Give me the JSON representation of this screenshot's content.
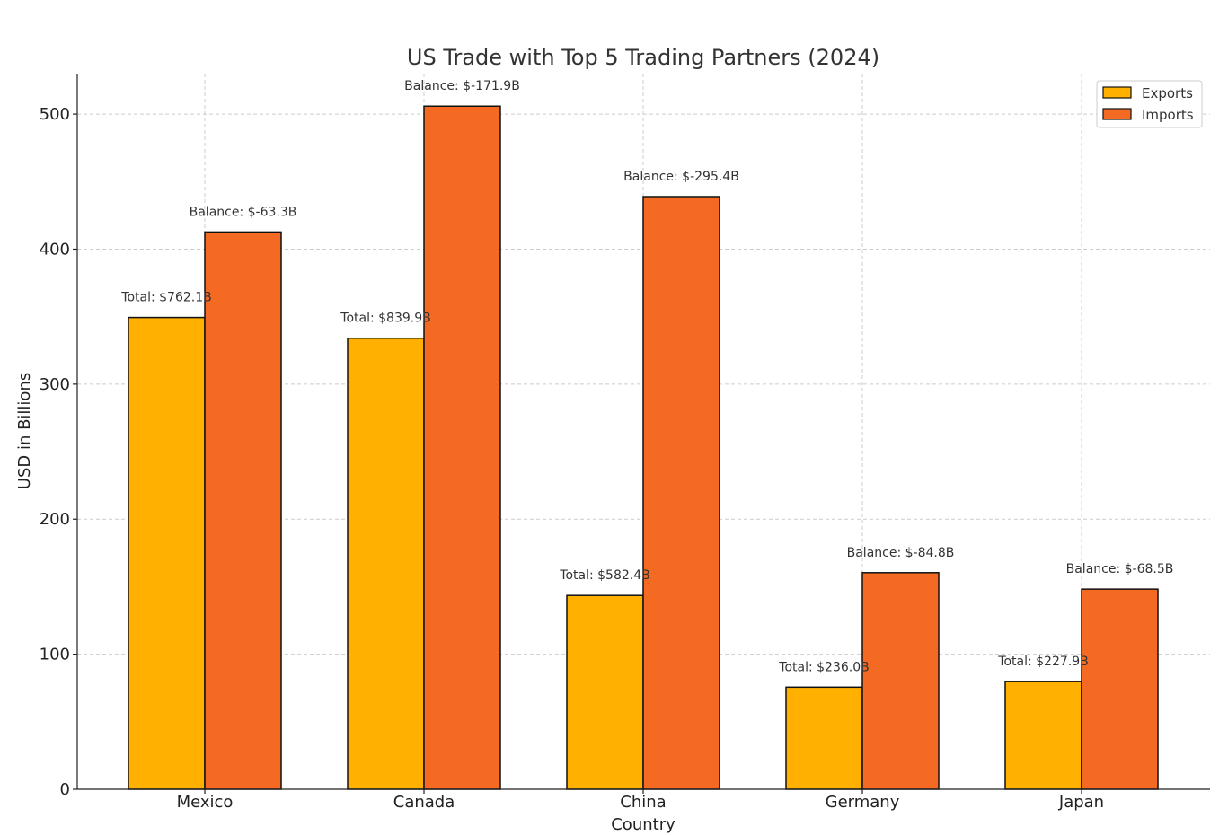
{
  "chart_data": {
    "type": "bar",
    "title": "US Trade with Top 5 Trading Partners (2024)",
    "xlabel": "Country",
    "ylabel": "USD in Billions",
    "categories": [
      "Mexico",
      "Canada",
      "China",
      "Germany",
      "Japan"
    ],
    "series": [
      {
        "name": "Exports",
        "color": "#FFB000",
        "values": [
          349.4,
          334.0,
          143.5,
          75.6,
          79.7
        ]
      },
      {
        "name": "Imports",
        "color": "#F46A22",
        "values": [
          412.7,
          505.9,
          438.9,
          160.4,
          148.2
        ]
      }
    ],
    "total_labels": [
      "Total: $762.1B",
      "Total: $839.9B",
      "Total: $582.4B",
      "Total: $236.0B",
      "Total: $227.9B"
    ],
    "balance_labels": [
      "Balance: $-63.3B",
      "Balance: $-171.9B",
      "Balance: $-295.4B",
      "Balance: $-84.8B",
      "Balance: $-68.5B"
    ],
    "ylim": [
      0,
      530
    ],
    "yticks": [
      0,
      100,
      200,
      300,
      400,
      500
    ],
    "grid": true,
    "legend_position": "top-right"
  }
}
